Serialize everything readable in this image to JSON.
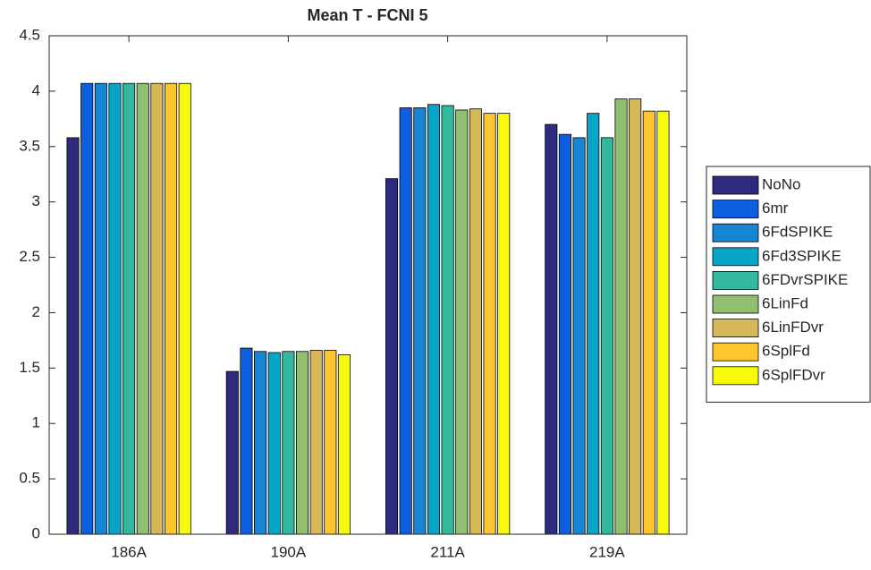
{
  "chart_data": {
    "type": "bar",
    "title": "Mean T - FCNI 5",
    "categories": [
      "186A",
      "190A",
      "211A",
      "219A"
    ],
    "series": [
      {
        "name": "NoNo",
        "color": "#2e2a7e",
        "values": [
          3.58,
          1.47,
          3.21,
          3.7
        ]
      },
      {
        "name": "6mr",
        "color": "#0d5fe0",
        "values": [
          4.07,
          1.68,
          3.85,
          3.61
        ]
      },
      {
        "name": "6FdSPIKE",
        "color": "#1585d4",
        "values": [
          4.07,
          1.65,
          3.85,
          3.58
        ]
      },
      {
        "name": "6Fd3SPIKE",
        "color": "#07a5c8",
        "values": [
          4.07,
          1.64,
          3.88,
          3.8
        ]
      },
      {
        "name": "6FDvrSPIKE",
        "color": "#32b89c",
        "values": [
          4.07,
          1.65,
          3.87,
          3.58
        ]
      },
      {
        "name": "6LinFd",
        "color": "#8fbf6f",
        "values": [
          4.07,
          1.65,
          3.83,
          3.93
        ]
      },
      {
        "name": "6LinFDvr",
        "color": "#d6b858",
        "values": [
          4.07,
          1.66,
          3.84,
          3.93
        ]
      },
      {
        "name": "6SplFd",
        "color": "#fcc62c",
        "values": [
          4.07,
          1.66,
          3.8,
          3.82
        ]
      },
      {
        "name": "6SplFDvr",
        "color": "#f8fa0d",
        "values": [
          4.07,
          1.62,
          3.8,
          3.82
        ]
      }
    ],
    "ylim": [
      0,
      4.5
    ],
    "yticks": [
      0,
      0.5,
      1,
      1.5,
      2,
      2.5,
      3,
      3.5,
      4,
      4.5
    ]
  }
}
